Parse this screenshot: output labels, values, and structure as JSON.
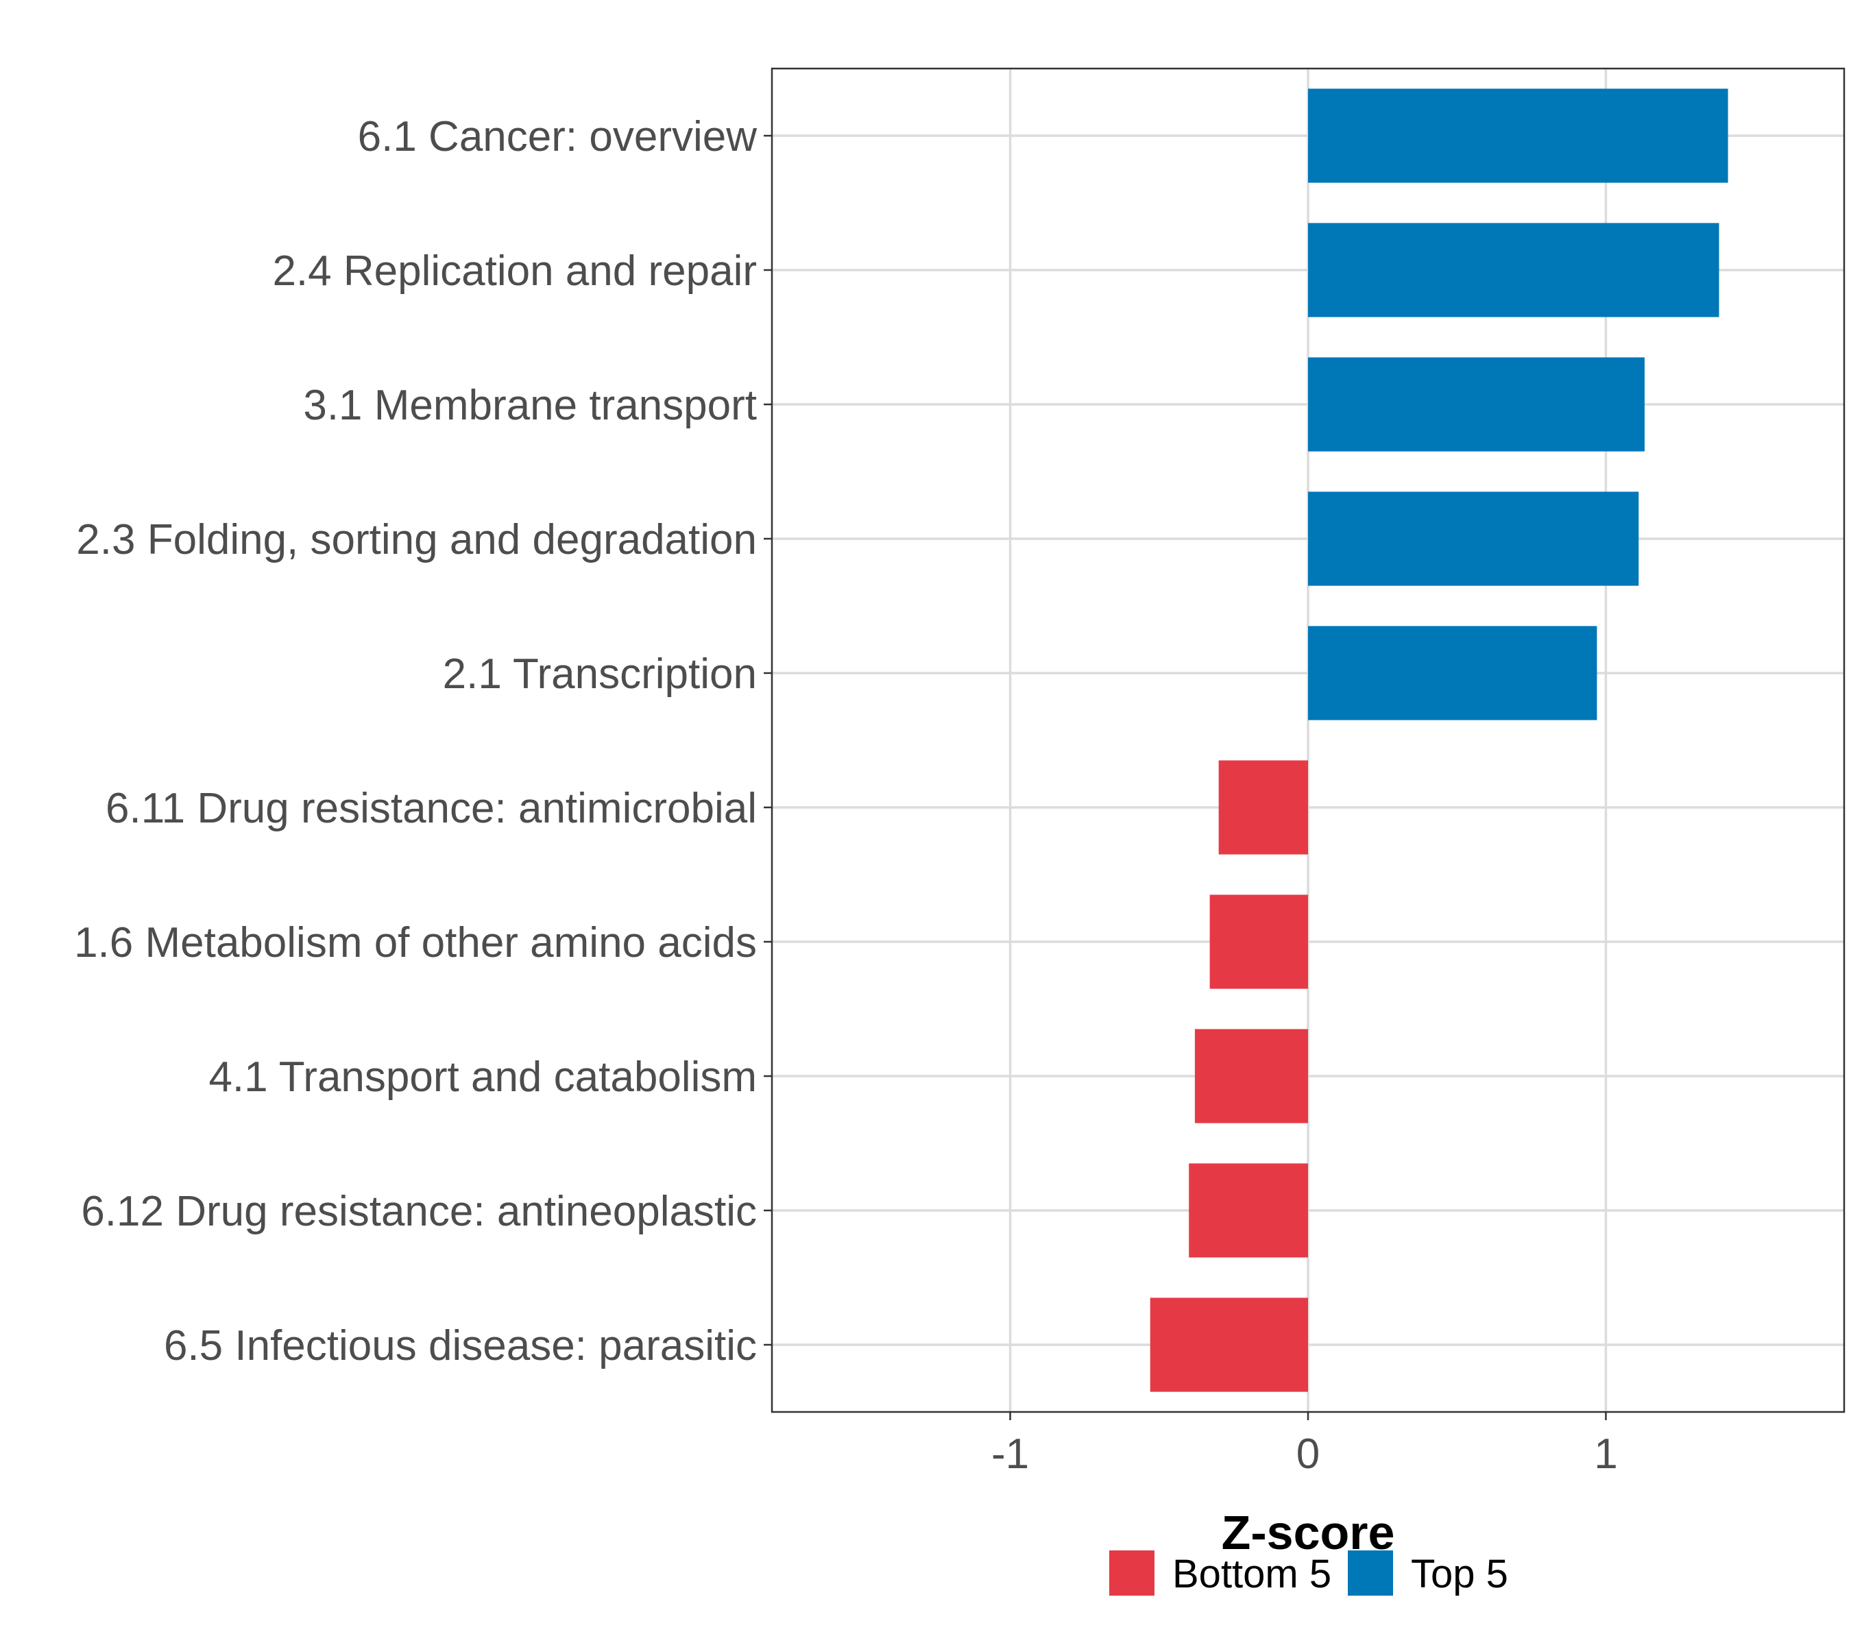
{
  "chart_data": {
    "type": "bar",
    "orientation": "horizontal",
    "xlabel": "Z-score",
    "ylabel": "",
    "xlim": [
      -1.8,
      1.8
    ],
    "xticks": [
      -1,
      0,
      1
    ],
    "xtick_labels": [
      "-1",
      "0",
      "1"
    ],
    "grid": true,
    "legend_position": "bottom",
    "categories": [
      "6.1 Cancer: overview",
      "2.4 Replication and repair",
      "3.1 Membrane transport",
      "2.3 Folding, sorting and degradation",
      "2.1 Transcription",
      "6.11 Drug resistance: antimicrobial",
      "1.6 Metabolism of other amino acids",
      "4.1 Transport and catabolism",
      "6.12 Drug resistance: antineoplastic",
      "6.5 Infectious disease: parasitic"
    ],
    "values": [
      1.41,
      1.38,
      1.13,
      1.11,
      0.97,
      -0.3,
      -0.33,
      -0.38,
      -0.4,
      -0.53
    ],
    "groups": [
      "Top 5",
      "Top 5",
      "Top 5",
      "Top 5",
      "Top 5",
      "Bottom 5",
      "Bottom 5",
      "Bottom 5",
      "Bottom 5",
      "Bottom 5"
    ],
    "legend": [
      {
        "name": "Bottom 5",
        "color": "#e63946"
      },
      {
        "name": "Top 5",
        "color": "#0077b6"
      }
    ]
  }
}
